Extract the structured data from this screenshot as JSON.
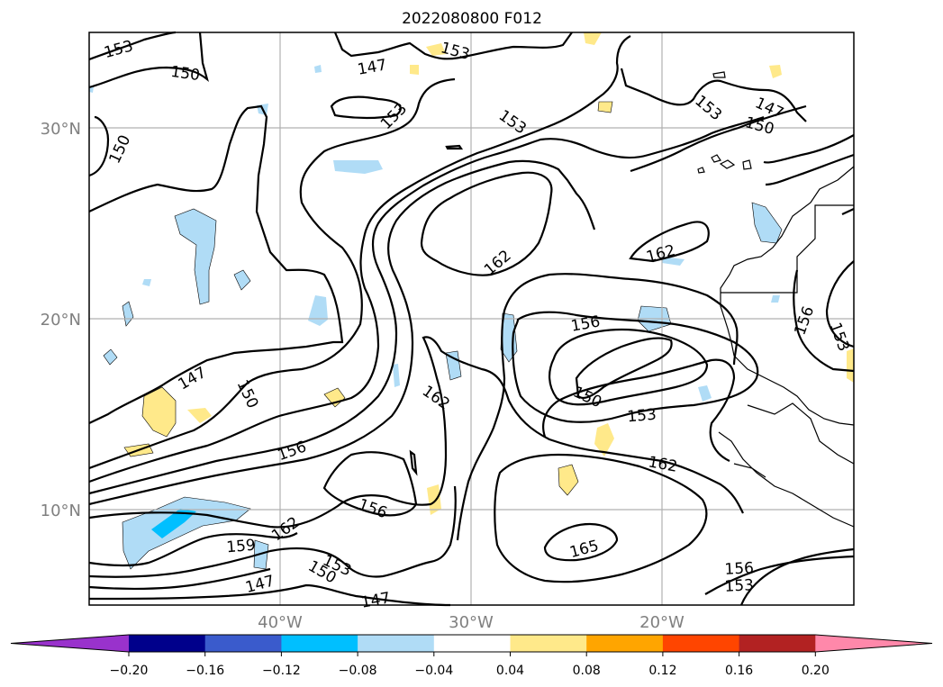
{
  "title": "2022080800 F012",
  "lat_labels": [
    "30°N",
    "20°N",
    "10°N"
  ],
  "lon_labels": [
    "40°W",
    "30°W",
    "20°W"
  ],
  "contour_labels": [
    "153",
    "150",
    "147",
    "153",
    "153",
    "153",
    "150",
    "147",
    "153",
    "150",
    "162",
    "162",
    "156",
    "150",
    "153",
    "162",
    "156",
    "162",
    "165",
    "156",
    "153",
    "147",
    "150",
    "156",
    "159",
    "162",
    "153",
    "150",
    "147",
    "147",
    "156",
    "153"
  ],
  "colorbar": {
    "ticks": [
      "−0.20",
      "−0.16",
      "−0.12",
      "−0.08",
      "−0.04",
      "0.04",
      "0.08",
      "0.12",
      "0.16",
      "0.20"
    ],
    "colors": [
      "#9932cc",
      "#00008b",
      "#3a5bcc",
      "#00bfff",
      "#b0dcf6",
      "#ffffff",
      "#ffe98a",
      "#ffa500",
      "#ff4500",
      "#b22222",
      "#ff88aa"
    ]
  }
}
